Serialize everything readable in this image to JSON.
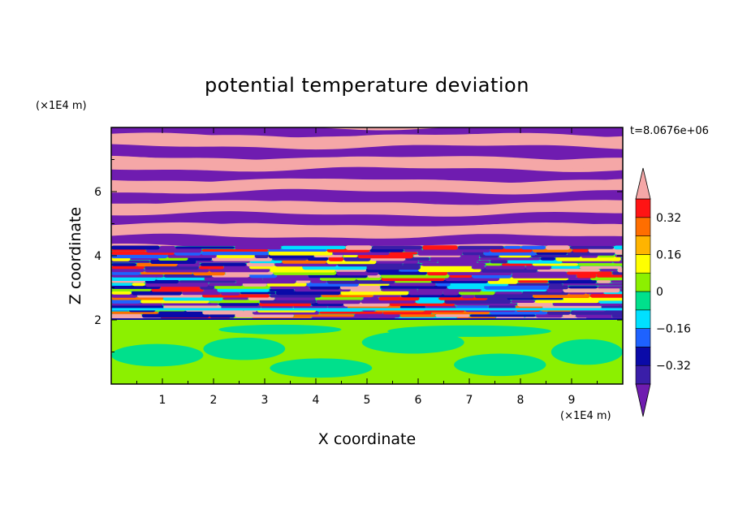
{
  "chart_data": {
    "type": "heatmap",
    "title": "potential temperature deviation",
    "xlabel": "X coordinate",
    "ylabel": "Z coordinate",
    "x_unit": "(×1E4 m)",
    "y_unit": "(×1E4 m)",
    "time_label": "t=8.0676e+06",
    "xlim": [
      0,
      10
    ],
    "ylim": [
      0,
      8
    ],
    "x_ticks": [
      "1",
      "2",
      "3",
      "4",
      "5",
      "6",
      "7",
      "8",
      "9"
    ],
    "y_ticks": [
      "2",
      "4",
      "6"
    ],
    "colorbar": {
      "levels": [
        -0.4,
        -0.32,
        -0.24,
        -0.16,
        -0.08,
        0,
        0.08,
        0.16,
        0.24,
        0.32,
        0.4
      ],
      "labels": [
        "0.32",
        "0.16",
        "0",
        "−0.16",
        "−0.32"
      ],
      "label_values": [
        0.32,
        0.16,
        0,
        -0.16,
        -0.32
      ],
      "colors": [
        "#6f1cb0",
        "#3a1ea8",
        "#0a0aa8",
        "#1e62ff",
        "#00e0ff",
        "#00e08c",
        "#8cf000",
        "#ffff00",
        "#ffb400",
        "#ff6e00",
        "#ff1414",
        "#f5a7a7"
      ],
      "extend": "both"
    },
    "bands": [
      {
        "z": [
          7.75,
          8.0
        ],
        "value": "below"
      },
      {
        "z": [
          7.4,
          7.75
        ],
        "value": "above"
      },
      {
        "z": [
          7.05,
          7.4
        ],
        "value": "below"
      },
      {
        "z": [
          6.7,
          7.05
        ],
        "value": "above"
      },
      {
        "z": [
          6.35,
          6.7
        ],
        "value": "below"
      },
      {
        "z": [
          6.0,
          6.35
        ],
        "value": "above"
      },
      {
        "z": [
          5.65,
          6.0
        ],
        "value": "below"
      },
      {
        "z": [
          5.3,
          5.65
        ],
        "value": "above"
      },
      {
        "z": [
          4.95,
          5.3
        ],
        "value": "below"
      },
      {
        "z": [
          4.6,
          4.95
        ],
        "value": "above"
      },
      {
        "z": [
          4.3,
          4.6
        ],
        "value": "below"
      },
      {
        "z": [
          2.0,
          4.3
        ],
        "value": "mixed"
      },
      {
        "z": [
          0.0,
          2.0
        ],
        "value": "near-zero"
      }
    ]
  }
}
